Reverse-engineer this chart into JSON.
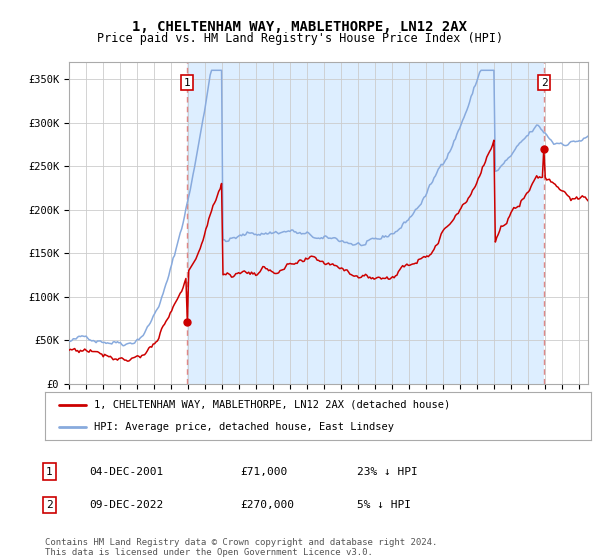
{
  "title": "1, CHELTENHAM WAY, MABLETHORPE, LN12 2AX",
  "subtitle": "Price paid vs. HM Land Registry's House Price Index (HPI)",
  "title_fontsize": 10,
  "subtitle_fontsize": 8.5,
  "ylabel_ticks": [
    "£0",
    "£50K",
    "£100K",
    "£150K",
    "£200K",
    "£250K",
    "£300K",
    "£350K"
  ],
  "ytick_values": [
    0,
    50000,
    100000,
    150000,
    200000,
    250000,
    300000,
    350000
  ],
  "ylim": [
    0,
    370000
  ],
  "xlim_start": 1995.0,
  "xlim_end": 2025.5,
  "sale1_x": 2001.92,
  "sale1_y": 71000,
  "sale1_label": "1",
  "sale2_x": 2022.92,
  "sale2_y": 270000,
  "sale2_label": "2",
  "vline_color": "#dd8888",
  "vline_style": "--",
  "sale_color": "#cc0000",
  "hpi_color": "#88aadd",
  "fill_color": "#ddeeff",
  "legend_sale_label": "1, CHELTENHAM WAY, MABLETHORPE, LN12 2AX (detached house)",
  "legend_hpi_label": "HPI: Average price, detached house, East Lindsey",
  "table_row1": [
    "1",
    "04-DEC-2001",
    "£71,000",
    "23% ↓ HPI"
  ],
  "table_row2": [
    "2",
    "09-DEC-2022",
    "£270,000",
    "5% ↓ HPI"
  ],
  "footer": "Contains HM Land Registry data © Crown copyright and database right 2024.\nThis data is licensed under the Open Government Licence v3.0.",
  "background_color": "#ffffff",
  "grid_color": "#cccccc"
}
